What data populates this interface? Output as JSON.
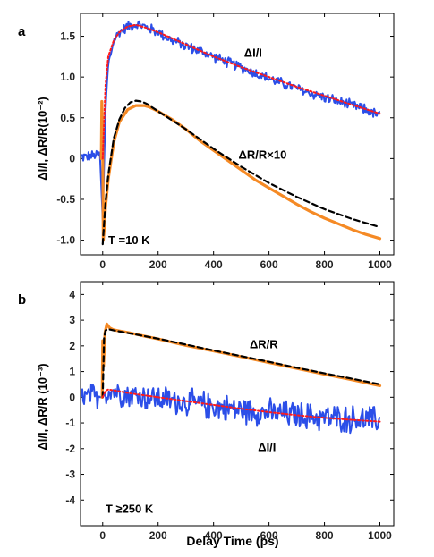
{
  "chart_data": [
    {
      "panel": "a",
      "type": "line",
      "ylabel": "ΔI/I, ΔR/R(10⁻²)",
      "xlim": [
        -80,
        1050
      ],
      "ylim": [
        -1.18,
        1.78
      ],
      "xticks": [
        0,
        200,
        400,
        600,
        800,
        1000
      ],
      "yticks": [
        -1.0,
        -0.5,
        0,
        0.5,
        1.0,
        1.5
      ],
      "ytick_labels": [
        "-1.0",
        "-0.5",
        "0",
        "0.5",
        "1.0",
        "1.5"
      ],
      "annotations": [
        {
          "text": "ΔI/I",
          "x": 510,
          "y": 1.25
        },
        {
          "text": "ΔR/R×10",
          "x": 490,
          "y": 0.0
        },
        {
          "text": "T =10 K",
          "x": 20,
          "y": -1.05
        }
      ],
      "series": [
        {
          "role": "transmission-data",
          "color": "#2b4ee8",
          "style": "noisy",
          "x": [
            -80,
            -40,
            -10,
            0,
            10,
            20,
            40,
            60,
            90,
            120,
            150,
            200,
            250,
            300,
            350,
            400,
            450,
            500,
            550,
            600,
            650,
            700,
            750,
            800,
            850,
            900,
            950,
            1000
          ],
          "y": [
            0.02,
            0.03,
            0.05,
            -0.75,
            0.6,
            1.15,
            1.45,
            1.55,
            1.62,
            1.65,
            1.62,
            1.55,
            1.45,
            1.38,
            1.32,
            1.25,
            1.18,
            1.12,
            1.05,
            0.98,
            0.92,
            0.86,
            0.8,
            0.75,
            0.7,
            0.65,
            0.6,
            0.52
          ],
          "noise": 0.055
        },
        {
          "role": "transmission-fit",
          "color": "#ff1a1a",
          "style": "dotted",
          "x": [
            0,
            10,
            20,
            40,
            60,
            90,
            120,
            160,
            200,
            300,
            400,
            500,
            600,
            700,
            800,
            900,
            1000
          ],
          "y": [
            0.0,
            0.9,
            1.25,
            1.45,
            1.55,
            1.62,
            1.64,
            1.6,
            1.55,
            1.4,
            1.25,
            1.12,
            1.0,
            0.88,
            0.77,
            0.66,
            0.55
          ]
        },
        {
          "role": "reflection-data",
          "color": "#f58a25",
          "style": "thick",
          "x": [
            -5,
            -3,
            0,
            2,
            5,
            10,
            20,
            40,
            60,
            90,
            120,
            150,
            170,
            200,
            250,
            300,
            350,
            400,
            450,
            500,
            550,
            600,
            650,
            700,
            750,
            800,
            850,
            900,
            950,
            1000
          ],
          "y": [
            0.0,
            0.7,
            0.2,
            -1.0,
            -0.9,
            -0.6,
            -0.25,
            0.2,
            0.45,
            0.6,
            0.65,
            0.65,
            0.63,
            0.58,
            0.48,
            0.36,
            0.22,
            0.1,
            -0.02,
            -0.14,
            -0.26,
            -0.36,
            -0.46,
            -0.56,
            -0.65,
            -0.73,
            -0.8,
            -0.87,
            -0.93,
            -0.98
          ]
        },
        {
          "role": "reflection-fit",
          "color": "#000000",
          "style": "dashed",
          "x": [
            0,
            5,
            10,
            20,
            40,
            60,
            80,
            100,
            120,
            140,
            160,
            200,
            250,
            300,
            400,
            500,
            600,
            700,
            800,
            900,
            1000
          ],
          "y": [
            -1.05,
            -0.8,
            -0.55,
            -0.2,
            0.25,
            0.48,
            0.62,
            0.69,
            0.71,
            0.7,
            0.67,
            0.58,
            0.47,
            0.36,
            0.12,
            -0.1,
            -0.3,
            -0.47,
            -0.62,
            -0.74,
            -0.84
          ]
        }
      ]
    },
    {
      "panel": "b",
      "type": "line",
      "ylabel": "ΔI/I, ΔR/R (10⁻³)",
      "xlabel": "Delay Time (ps)",
      "xlim": [
        -80,
        1050
      ],
      "ylim": [
        -5,
        4.5
      ],
      "xticks": [
        0,
        200,
        400,
        600,
        800,
        1000
      ],
      "yticks": [
        -4,
        -3,
        -2,
        -1,
        0,
        1,
        2,
        3,
        4
      ],
      "ytick_labels": [
        "-4",
        "-3",
        "-2",
        "-1",
        "0",
        "1",
        "2",
        "3",
        "4"
      ],
      "annotations": [
        {
          "text": "ΔR/R",
          "x": 530,
          "y": 1.9
        },
        {
          "text": "ΔI/I",
          "x": 560,
          "y": -2.1
        },
        {
          "text": "T ≥250 K",
          "x": 10,
          "y": -4.5
        }
      ],
      "series": [
        {
          "role": "transmission-data",
          "color": "#2b4ee8",
          "style": "noisy",
          "x": [
            -80,
            0,
            20,
            100,
            200,
            300,
            400,
            500,
            600,
            700,
            800,
            900,
            1000
          ],
          "y": [
            0.0,
            0.0,
            0.3,
            0.1,
            -0.05,
            -0.2,
            -0.35,
            -0.5,
            -0.6,
            -0.7,
            -0.8,
            -0.85,
            -0.9
          ],
          "noise": 0.45
        },
        {
          "role": "transmission-fit",
          "color": "#ff1a1a",
          "style": "dotted",
          "x": [
            0,
            10,
            20,
            50,
            100,
            200,
            300,
            400,
            500,
            600,
            700,
            800,
            900,
            1000
          ],
          "y": [
            0.0,
            0.25,
            0.3,
            0.25,
            0.15,
            0.0,
            -0.15,
            -0.3,
            -0.45,
            -0.58,
            -0.7,
            -0.8,
            -0.88,
            -0.95
          ]
        },
        {
          "role": "reflection-data",
          "color": "#f58a25",
          "style": "thick",
          "x": [
            -2,
            0,
            3,
            8,
            15,
            25,
            40,
            60,
            100,
            150,
            200,
            300,
            400,
            500,
            600,
            700,
            800,
            900,
            1000
          ],
          "y": [
            0.0,
            2.2,
            1.2,
            2.5,
            2.85,
            2.7,
            2.62,
            2.58,
            2.5,
            2.38,
            2.27,
            2.02,
            1.8,
            1.58,
            1.35,
            1.12,
            0.9,
            0.68,
            0.45
          ]
        },
        {
          "role": "reflection-fit",
          "color": "#000000",
          "style": "dashed",
          "x": [
            0,
            5,
            10,
            20,
            40,
            80,
            150,
            200,
            300,
            400,
            500,
            600,
            700,
            800,
            900,
            1000
          ],
          "y": [
            0.0,
            2.3,
            2.6,
            2.65,
            2.6,
            2.52,
            2.38,
            2.28,
            2.05,
            1.82,
            1.6,
            1.38,
            1.15,
            0.93,
            0.72,
            0.5
          ]
        }
      ]
    }
  ]
}
